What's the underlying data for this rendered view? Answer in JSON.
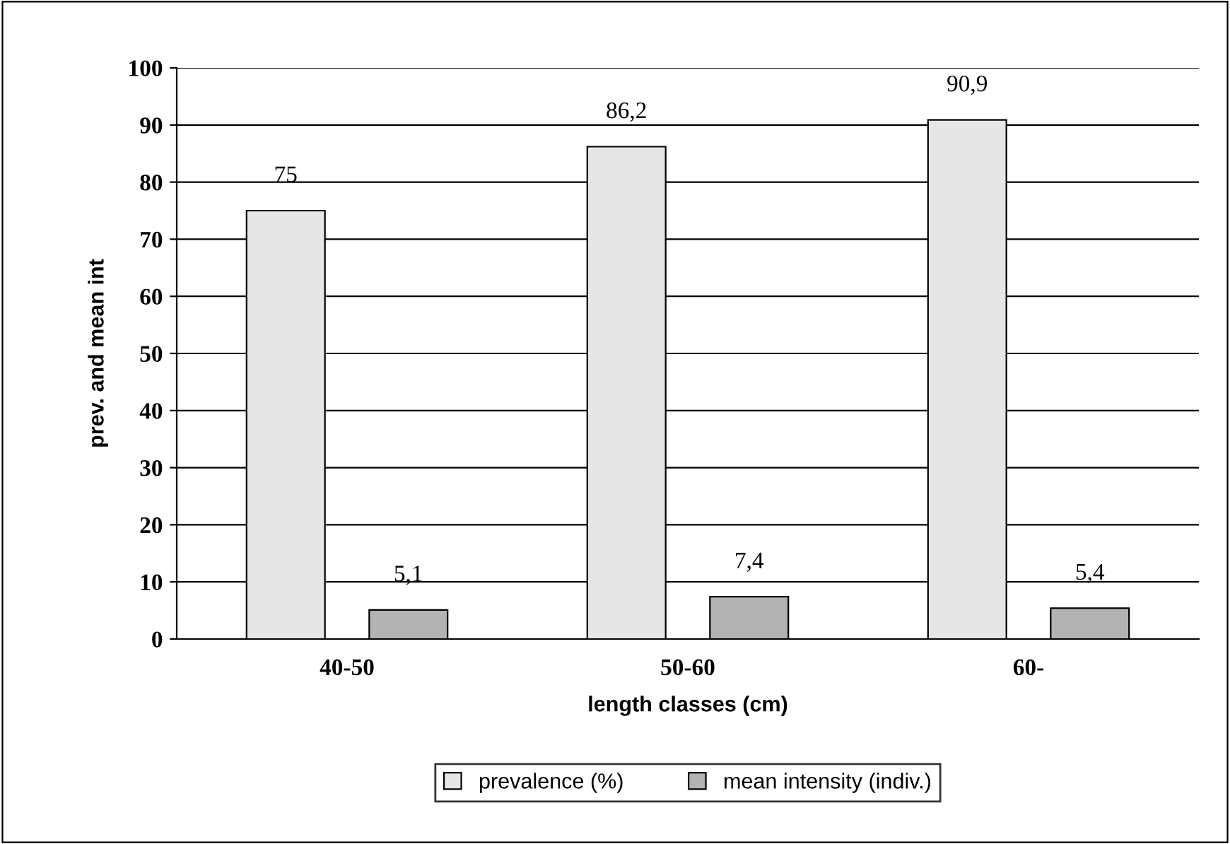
{
  "chart_data": {
    "type": "bar",
    "xlabel": "length classes (cm)",
    "ylabel": "prev. and mean int",
    "categories": [
      "40-50",
      "50-60",
      "60-"
    ],
    "series": [
      {
        "name": "prevalence (%)",
        "color": "#e6e6e6",
        "values": [
          75,
          86.2,
          90.9
        ],
        "value_labels": [
          "75",
          "86,2",
          "90,9"
        ]
      },
      {
        "name": "mean intensity (indiv.)",
        "color": "#b3b3b3",
        "values": [
          5.1,
          7.4,
          5.4
        ],
        "value_labels": [
          "5,1",
          "7,4",
          "5,4"
        ]
      }
    ],
    "ylim": [
      0,
      100
    ],
    "yticks": [
      0,
      10,
      20,
      30,
      40,
      50,
      60,
      70,
      80,
      90,
      100
    ],
    "grid": "y",
    "legend": "bottom"
  }
}
